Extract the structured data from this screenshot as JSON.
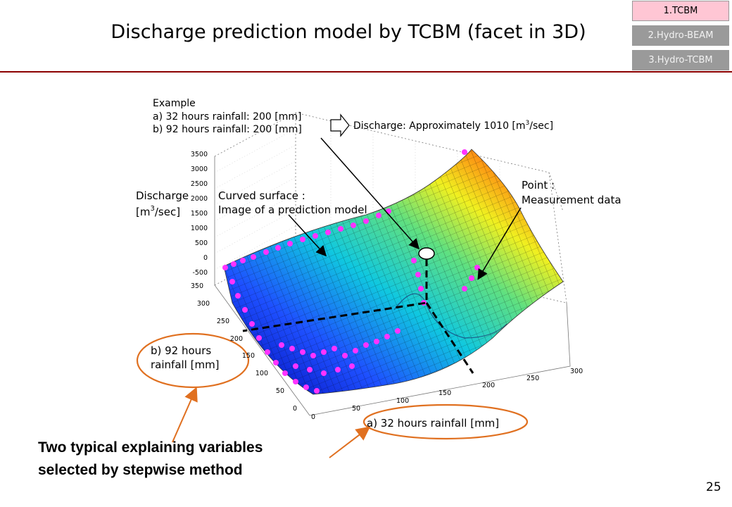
{
  "title": "Discharge prediction model by TCBM (facet in 3D)",
  "nav": [
    {
      "label": "1.TCBM",
      "active": true
    },
    {
      "label": "2.Hydro-BEAM",
      "active": false
    },
    {
      "label": "3.Hydro-TCBM",
      "active": false
    }
  ],
  "page_number": "25",
  "example": {
    "heading": "Example",
    "line_a": "a) 32 hours rainfall: 200 [mm]",
    "line_b": "b) 92 hours rainfall: 200 [mm]",
    "result_prefix": "Discharge: Approximately 1010 [m",
    "result_sup": "3",
    "result_suffix": "/sec]"
  },
  "labels": {
    "z_axis_1": "Discharge",
    "z_axis_2_prefix": "[m",
    "z_axis_2_sup": "3",
    "z_axis_2_suffix": "/sec]",
    "curved_1": "Curved surface :",
    "curved_2": "Image of a prediction model",
    "point_1": "Point :",
    "point_2": "Measurement data",
    "b_var_1": "b)  92  hours",
    "b_var_2": "rainfall [mm]",
    "a_var": "a) 32 hours rainfall [mm]"
  },
  "note": {
    "line1": "Two typical explaining variables",
    "line2": "selected by stepwise method"
  },
  "axes": {
    "z_ticks": [
      "3500",
      "3000",
      "2500",
      "2000",
      "1500",
      "1000",
      "500",
      "0",
      "-500"
    ],
    "y_ticks": [
      "350",
      "300",
      "250",
      "200",
      "150",
      "100",
      "50",
      "0"
    ],
    "x_ticks": [
      "0",
      "50",
      "100",
      "150",
      "200",
      "250",
      "300"
    ]
  },
  "colors": {
    "rule": "#8b0000",
    "nav_active": "#ffc6d4",
    "nav_inactive": "#9a9a9a",
    "ellipse": "#e07020",
    "points": "#ff33ff"
  }
}
